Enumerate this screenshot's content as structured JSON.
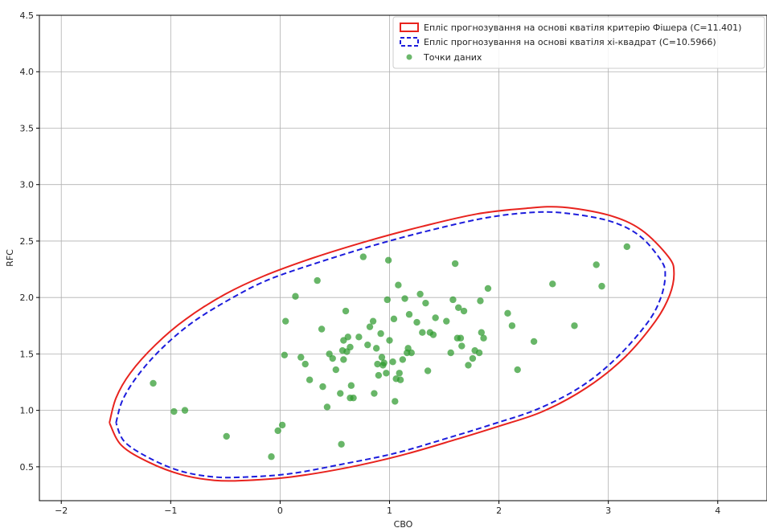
{
  "chart_data": {
    "type": "scatter",
    "title": "",
    "xlabel": "CBO",
    "ylabel": "RFC",
    "xlim": [
      -2.2,
      4.45
    ],
    "ylim": [
      0.2,
      4.5
    ],
    "xticks": [
      -2,
      -1,
      0,
      1,
      2,
      3,
      4
    ],
    "yticks": [
      0.5,
      1.0,
      1.5,
      2.0,
      2.5,
      3.0,
      3.5,
      4.0,
      4.5
    ],
    "xtick_labels": [
      "−2",
      "−1",
      "0",
      "1",
      "2",
      "3",
      "4"
    ],
    "ytick_labels": [
      "0.5",
      "1.0",
      "1.5",
      "2.0",
      "2.5",
      "3.0",
      "3.5",
      "4.0",
      "4.5"
    ],
    "grid": true,
    "legend_position": "top-right",
    "colors": {
      "fisher_ellipse": "#e8231e",
      "chi2_ellipse": "#1c1cdc",
      "points": "#2e9a2e",
      "grid": "#b0b0b0"
    },
    "ellipses": [
      {
        "name": "Епліс прогнозування на основі кватіля критерію Фішера (C=11.401)",
        "style": "solid",
        "curve": [
          [
            -1.56,
            0.89
          ],
          [
            -1.5,
            1.11
          ],
          [
            -1.37,
            1.33
          ],
          [
            -1.14,
            1.58
          ],
          [
            -0.86,
            1.81
          ],
          [
            -0.5,
            2.03
          ],
          [
            -0.15,
            2.19
          ],
          [
            0.3,
            2.35
          ],
          [
            0.8,
            2.5
          ],
          [
            1.3,
            2.63
          ],
          [
            1.8,
            2.74
          ],
          [
            2.25,
            2.79
          ],
          [
            2.58,
            2.8
          ],
          [
            3.0,
            2.73
          ],
          [
            3.3,
            2.6
          ],
          [
            3.55,
            2.36
          ],
          [
            3.6,
            2.22
          ],
          [
            3.56,
            2.02
          ],
          [
            3.43,
            1.79
          ],
          [
            3.15,
            1.47
          ],
          [
            2.8,
            1.2
          ],
          [
            2.4,
            0.99
          ],
          [
            2.0,
            0.86
          ],
          [
            1.6,
            0.74
          ],
          [
            1.1,
            0.6
          ],
          [
            0.6,
            0.49
          ],
          [
            0.1,
            0.41
          ],
          [
            -0.3,
            0.38
          ],
          [
            -0.6,
            0.38
          ],
          [
            -0.9,
            0.43
          ],
          [
            -1.2,
            0.54
          ],
          [
            -1.45,
            0.69
          ],
          [
            -1.56,
            0.89
          ]
        ]
      },
      {
        "name": "Епліс прогнозування на основі кватіля хі-квадрат (C=10.5966)",
        "style": "dashed",
        "curve": [
          [
            -1.5,
            0.89
          ],
          [
            -1.44,
            1.09
          ],
          [
            -1.3,
            1.31
          ],
          [
            -1.08,
            1.55
          ],
          [
            -0.8,
            1.78
          ],
          [
            -0.45,
            1.99
          ],
          [
            -0.1,
            2.16
          ],
          [
            0.35,
            2.31
          ],
          [
            0.85,
            2.46
          ],
          [
            1.35,
            2.59
          ],
          [
            1.85,
            2.7
          ],
          [
            2.25,
            2.75
          ],
          [
            2.58,
            2.75
          ],
          [
            3.0,
            2.68
          ],
          [
            3.28,
            2.55
          ],
          [
            3.48,
            2.33
          ],
          [
            3.52,
            2.2
          ],
          [
            3.48,
            2.0
          ],
          [
            3.36,
            1.78
          ],
          [
            3.08,
            1.47
          ],
          [
            2.75,
            1.21
          ],
          [
            2.35,
            1.01
          ],
          [
            1.95,
            0.88
          ],
          [
            1.55,
            0.76
          ],
          [
            1.05,
            0.62
          ],
          [
            0.55,
            0.52
          ],
          [
            0.1,
            0.44
          ],
          [
            -0.3,
            0.41
          ],
          [
            -0.6,
            0.41
          ],
          [
            -0.9,
            0.46
          ],
          [
            -1.18,
            0.57
          ],
          [
            -1.42,
            0.72
          ],
          [
            -1.5,
            0.89
          ]
        ]
      }
    ],
    "series": [
      {
        "name": "Точки даних",
        "points": [
          [
            -1.16,
            1.24
          ],
          [
            -0.97,
            0.99
          ],
          [
            -0.87,
            1.0
          ],
          [
            -0.49,
            0.77
          ],
          [
            -0.08,
            0.59
          ],
          [
            -0.02,
            0.82
          ],
          [
            0.02,
            0.87
          ],
          [
            0.04,
            1.49
          ],
          [
            0.05,
            1.79
          ],
          [
            0.14,
            2.01
          ],
          [
            0.19,
            1.47
          ],
          [
            0.23,
            1.41
          ],
          [
            0.27,
            1.27
          ],
          [
            0.34,
            2.15
          ],
          [
            0.38,
            1.72
          ],
          [
            0.39,
            1.21
          ],
          [
            0.43,
            1.03
          ],
          [
            0.45,
            1.5
          ],
          [
            0.48,
            1.46
          ],
          [
            0.51,
            1.36
          ],
          [
            0.55,
            1.15
          ],
          [
            0.56,
            0.7
          ],
          [
            0.57,
            1.53
          ],
          [
            0.58,
            1.62
          ],
          [
            0.58,
            1.45
          ],
          [
            0.6,
            1.88
          ],
          [
            0.61,
            1.52
          ],
          [
            0.62,
            1.65
          ],
          [
            0.64,
            1.56
          ],
          [
            0.64,
            1.11
          ],
          [
            0.65,
            1.22
          ],
          [
            0.67,
            1.11
          ],
          [
            0.72,
            1.65
          ],
          [
            0.76,
            2.36
          ],
          [
            0.8,
            1.58
          ],
          [
            0.82,
            1.74
          ],
          [
            0.85,
            1.79
          ],
          [
            0.86,
            1.15
          ],
          [
            0.88,
            1.55
          ],
          [
            0.89,
            1.41
          ],
          [
            0.9,
            1.31
          ],
          [
            0.92,
            1.68
          ],
          [
            0.93,
            1.47
          ],
          [
            0.94,
            1.4
          ],
          [
            0.95,
            1.42
          ],
          [
            0.97,
            1.33
          ],
          [
            0.98,
            1.98
          ],
          [
            0.99,
            2.33
          ],
          [
            1.0,
            1.62
          ],
          [
            1.03,
            1.43
          ],
          [
            1.04,
            1.81
          ],
          [
            1.05,
            1.08
          ],
          [
            1.06,
            1.28
          ],
          [
            1.08,
            2.11
          ],
          [
            1.09,
            1.33
          ],
          [
            1.1,
            1.27
          ],
          [
            1.12,
            1.45
          ],
          [
            1.14,
            1.99
          ],
          [
            1.16,
            1.51
          ],
          [
            1.17,
            1.55
          ],
          [
            1.18,
            1.85
          ],
          [
            1.2,
            1.51
          ],
          [
            1.25,
            1.78
          ],
          [
            1.28,
            2.03
          ],
          [
            1.3,
            1.69
          ],
          [
            1.33,
            1.95
          ],
          [
            1.35,
            1.35
          ],
          [
            1.37,
            1.69
          ],
          [
            1.4,
            1.67
          ],
          [
            1.42,
            1.82
          ],
          [
            1.52,
            1.79
          ],
          [
            1.56,
            1.51
          ],
          [
            1.58,
            1.98
          ],
          [
            1.6,
            2.3
          ],
          [
            1.62,
            1.64
          ],
          [
            1.63,
            1.91
          ],
          [
            1.65,
            1.64
          ],
          [
            1.66,
            1.57
          ],
          [
            1.68,
            1.88
          ],
          [
            1.72,
            1.4
          ],
          [
            1.76,
            1.46
          ],
          [
            1.78,
            1.53
          ],
          [
            1.82,
            1.51
          ],
          [
            1.83,
            1.97
          ],
          [
            1.84,
            1.69
          ],
          [
            1.86,
            1.64
          ],
          [
            1.9,
            2.08
          ],
          [
            2.08,
            1.86
          ],
          [
            2.12,
            1.75
          ],
          [
            2.17,
            1.36
          ],
          [
            2.32,
            1.61
          ],
          [
            2.49,
            2.12
          ],
          [
            2.69,
            1.75
          ],
          [
            2.89,
            2.29
          ],
          [
            2.94,
            2.1
          ],
          [
            3.17,
            2.45
          ]
        ]
      }
    ]
  }
}
